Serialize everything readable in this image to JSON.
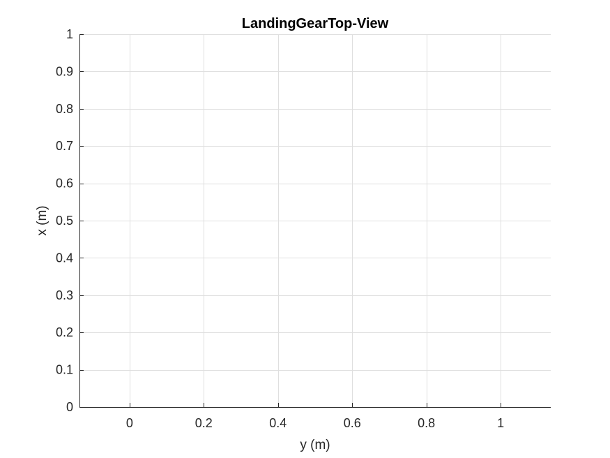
{
  "chart_data": {
    "type": "scatter",
    "title": "LandingGearTop-View",
    "xlabel": "y (m)",
    "ylabel": "x (m)",
    "xlim": [
      -0.135,
      1.135
    ],
    "ylim": [
      0,
      1
    ],
    "xticks": [
      0,
      0.2,
      0.4,
      0.6,
      0.8,
      1
    ],
    "xtick_labels": [
      "0",
      "0.2",
      "0.4",
      "0.6",
      "0.8",
      "1"
    ],
    "yticks": [
      0,
      0.1,
      0.2,
      0.3,
      0.4,
      0.5,
      0.6,
      0.7,
      0.8,
      0.9,
      1
    ],
    "ytick_labels": [
      "0",
      "0.1",
      "0.2",
      "0.3",
      "0.4",
      "0.5",
      "0.6",
      "0.7",
      "0.8",
      "0.9",
      "1"
    ],
    "grid": true,
    "series": []
  },
  "colors": {
    "axis": "#262626",
    "grid": "#dfdfdf",
    "background": "#ffffff"
  }
}
